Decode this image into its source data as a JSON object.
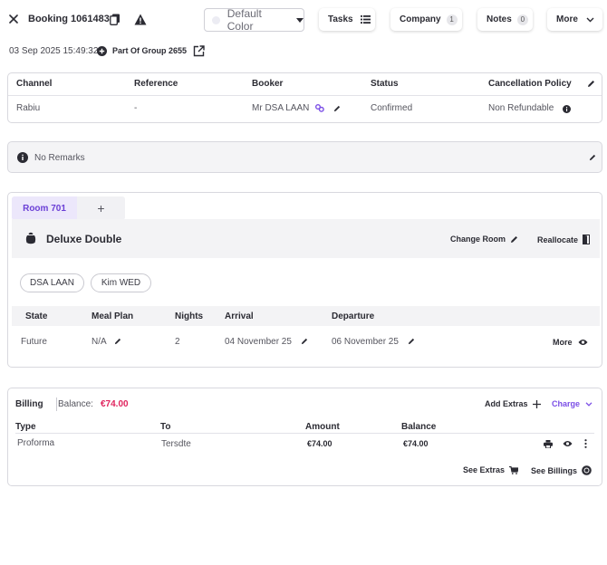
{
  "header": {
    "booking_title": "Booking 1061483",
    "color_select": "Default Color",
    "buttons": {
      "tasks": "Tasks",
      "company": "Company",
      "company_count": "1",
      "notes": "Notes",
      "notes_count": "0",
      "more": "More"
    }
  },
  "subheader": {
    "created_at": "03 Sep 2025 15:49:32",
    "group_link": "Part Of Group 2655"
  },
  "booking_info": {
    "columns": [
      "Channel",
      "Reference",
      "Booker",
      "Status",
      "Cancellation Policy"
    ],
    "row": {
      "channel": "Rabiu",
      "reference": "-",
      "booker": "Mr DSA LAAN",
      "status": "Confirmed",
      "cancellation_policy": "Non Refundable"
    }
  },
  "remarks": {
    "text": "No Remarks"
  },
  "room": {
    "tabs": [
      {
        "label": "Room 701"
      }
    ],
    "add_tab": "+",
    "room_type": "Deluxe Double",
    "change_room": "Change Room",
    "reallocate": "Reallocate",
    "guests": [
      "DSA LAAN",
      "Kim WED"
    ],
    "stay_columns": [
      "State",
      "Meal Plan",
      "Nights",
      "Arrival",
      "Departure"
    ],
    "stay_row": {
      "state": "Future",
      "meal_plan": "N/A",
      "nights": "2",
      "arrival": "04 November 25",
      "departure": "06 November 25",
      "more": "More"
    }
  },
  "billing": {
    "label": "Billing",
    "balance_label": "Balance:",
    "balance_value": "€74.00",
    "add_extras": "Add Extras",
    "charge": "Charge",
    "columns": [
      "Type",
      "To",
      "Amount",
      "Balance"
    ],
    "rows": [
      {
        "type": "Proforma",
        "to": "Tersdte",
        "amount": "€74.00",
        "balance": "€74.00"
      }
    ],
    "see_extras": "See Extras",
    "see_billings": "See Billings"
  },
  "colors": {
    "accent": "#7b4ee6",
    "balance": "#e0245e",
    "tab_bg": "#ece7fb"
  }
}
